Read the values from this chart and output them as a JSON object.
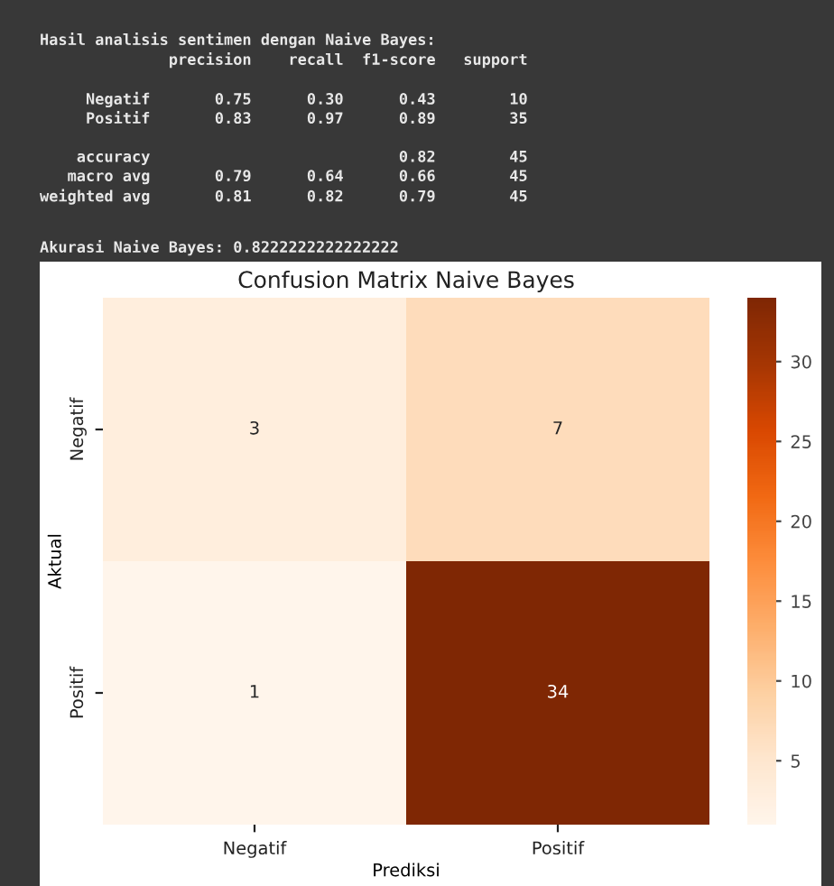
{
  "chart_data": {
    "type": "heatmap",
    "title": "Confusion Matrix Naive Bayes",
    "xlabel": "Prediksi",
    "ylabel": "Aktual",
    "categories": [
      "Negatif",
      "Positif"
    ],
    "y_categories": [
      "Negatif",
      "Positif"
    ],
    "cells": [
      [
        3,
        7
      ],
      [
        1,
        34
      ]
    ],
    "data_labels": true,
    "clim": [
      1,
      34
    ],
    "cticks": [
      5,
      10,
      15,
      20,
      25,
      30
    ],
    "annotations": [
      "Hasil analisis sentimen dengan Naive Bayes:",
      "              precision    recall  f1-score   support\n\n     Negatif       0.75      0.30      0.43        10\n     Positif       0.83      0.97      0.89        35\n\n    accuracy                           0.82        45\n   macro avg       0.79      0.64      0.66        45\nweighted avg       0.81      0.82      0.79        45",
      "Akurasi Naive Bayes: 0.8222222222222222"
    ]
  }
}
